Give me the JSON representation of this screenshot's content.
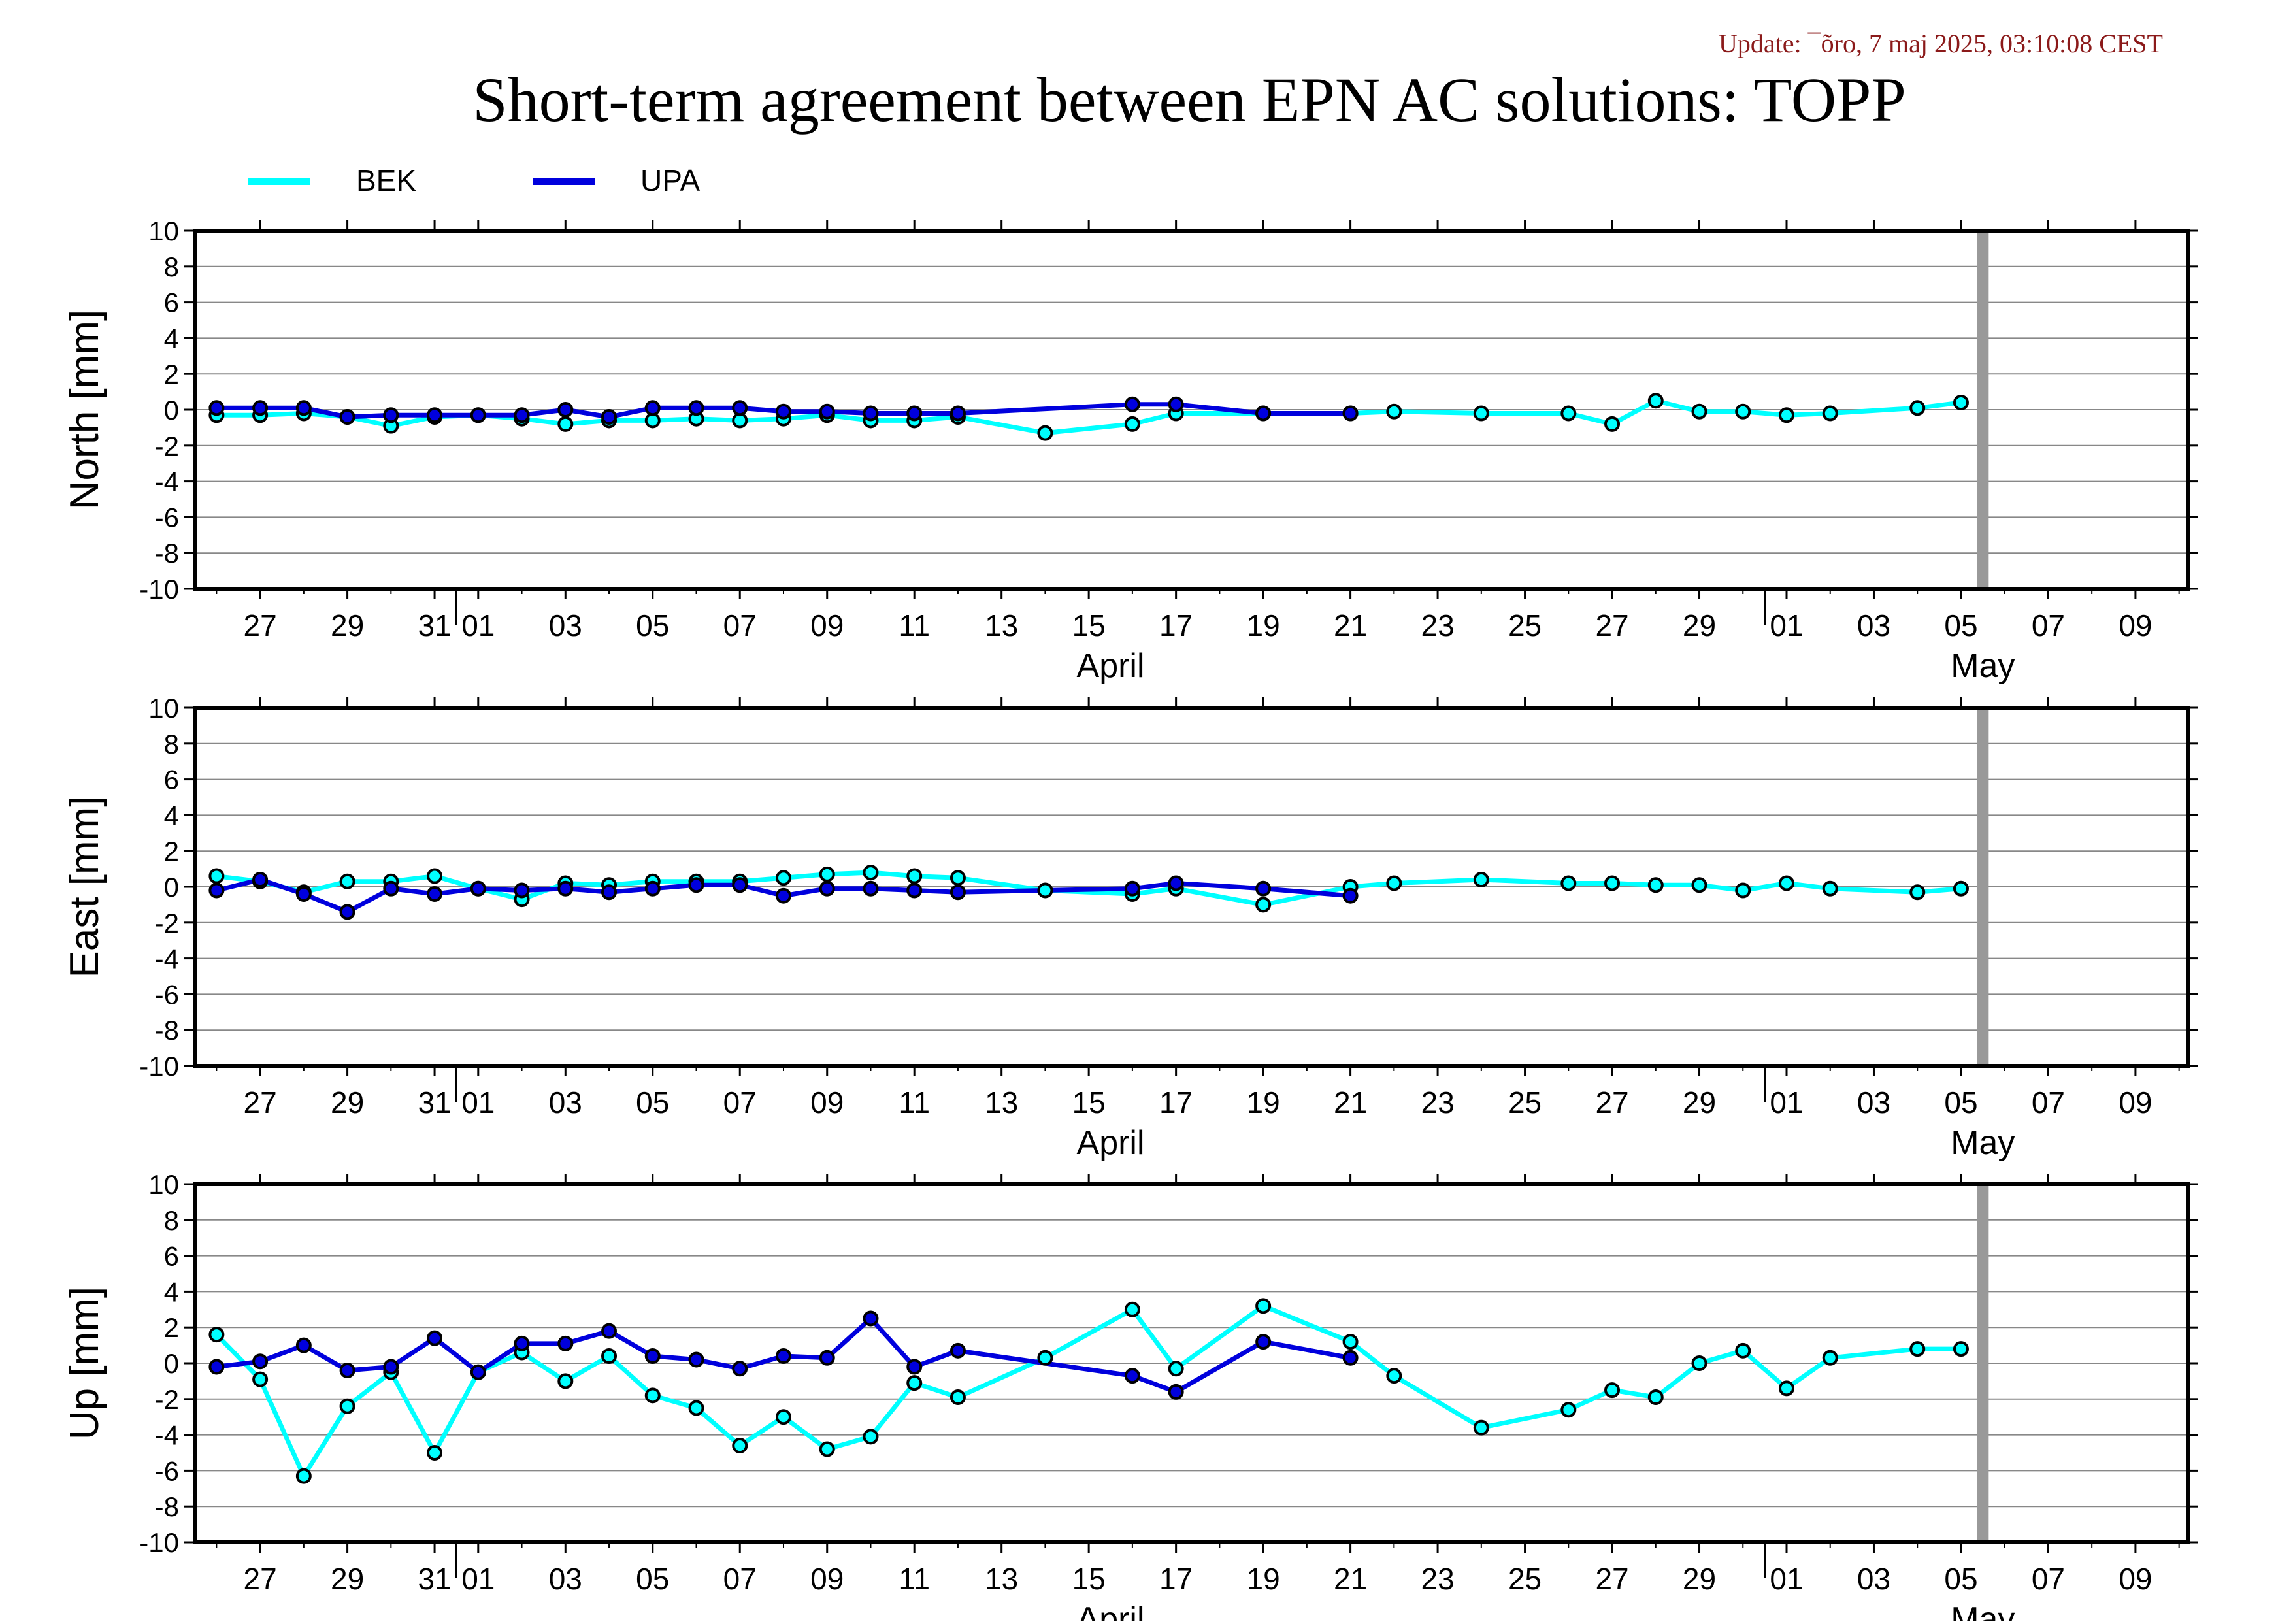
{
  "header": {
    "update_text": "Update: ¯õro, 7 maj 2025, 03:10:08 CEST",
    "title": "Short-term agreement between EPN AC solutions: TOPP"
  },
  "colors": {
    "bek": "#00ffff",
    "upa": "#0000dd",
    "update_text": "#8b1a1a",
    "marker_edge": "#000000",
    "grid": "#888888",
    "now_line": "#999999"
  },
  "legend": [
    {
      "name": "BEK",
      "color": "#00ffff"
    },
    {
      "name": "UPA",
      "color": "#0000dd"
    }
  ],
  "x_axis": {
    "range_days": [
      -5.5,
      40.2
    ],
    "ticks": [
      {
        "day": -4,
        "label": "27"
      },
      {
        "day": -2,
        "label": "29"
      },
      {
        "day": 0,
        "label": "31"
      },
      {
        "day": 1,
        "label": "01"
      },
      {
        "day": 3,
        "label": "03"
      },
      {
        "day": 5,
        "label": "05"
      },
      {
        "day": 7,
        "label": "07"
      },
      {
        "day": 9,
        "label": "09"
      },
      {
        "day": 11,
        "label": "11"
      },
      {
        "day": 13,
        "label": "13"
      },
      {
        "day": 15,
        "label": "15"
      },
      {
        "day": 17,
        "label": "17"
      },
      {
        "day": 19,
        "label": "19"
      },
      {
        "day": 21,
        "label": "21"
      },
      {
        "day": 23,
        "label": "23"
      },
      {
        "day": 25,
        "label": "25"
      },
      {
        "day": 27,
        "label": "27"
      },
      {
        "day": 29,
        "label": "29"
      },
      {
        "day": 31,
        "label": "01"
      },
      {
        "day": 33,
        "label": "03"
      },
      {
        "day": 35,
        "label": "05"
      },
      {
        "day": 37,
        "label": "07"
      },
      {
        "day": 39,
        "label": "09"
      }
    ],
    "month_labels": [
      {
        "day": 15.5,
        "label": "April"
      },
      {
        "day": 35.5,
        "label": "May"
      }
    ],
    "month_boundaries": [
      0.5,
      30.5
    ],
    "now_line_day": 35.5
  },
  "chart_data": [
    {
      "type": "line",
      "ylabel": "North [mm]",
      "ylim": [
        -10,
        10
      ],
      "yticks": [
        10,
        8,
        6,
        4,
        2,
        0,
        -2,
        -4,
        -6,
        -8,
        -10
      ],
      "grid": true,
      "series": [
        {
          "name": "BEK",
          "x": [
            -5,
            -4,
            -3,
            -2,
            -1,
            0,
            1,
            2,
            3,
            4,
            5,
            6,
            7,
            8,
            9,
            10,
            11,
            12,
            14,
            16,
            17,
            19,
            21,
            22,
            24,
            26,
            27,
            28,
            29,
            30,
            31,
            32,
            34,
            35
          ],
          "y": [
            -0.3,
            -0.3,
            -0.2,
            -0.4,
            -0.9,
            -0.4,
            -0.3,
            -0.5,
            -0.8,
            -0.6,
            -0.6,
            -0.5,
            -0.6,
            -0.5,
            -0.3,
            -0.6,
            -0.6,
            -0.4,
            -1.3,
            -0.8,
            -0.2,
            -0.2,
            -0.2,
            -0.1,
            -0.2,
            -0.2,
            -0.8,
            0.5,
            -0.1,
            -0.1,
            -0.3,
            -0.2,
            0.1,
            0.4
          ]
        },
        {
          "name": "UPA",
          "x": [
            -5,
            -4,
            -3,
            -2,
            -1,
            0,
            1,
            2,
            3,
            4,
            5,
            6,
            7,
            8,
            9,
            10,
            11,
            12,
            16,
            17,
            19,
            21
          ],
          "y": [
            0.1,
            0.1,
            0.1,
            -0.4,
            -0.3,
            -0.3,
            -0.3,
            -0.3,
            0.0,
            -0.4,
            0.1,
            0.1,
            0.1,
            -0.1,
            -0.1,
            -0.2,
            -0.2,
            -0.2,
            0.3,
            0.3,
            -0.2,
            -0.2
          ]
        }
      ]
    },
    {
      "type": "line",
      "ylabel": "East [mm]",
      "ylim": [
        -10,
        10
      ],
      "yticks": [
        10,
        8,
        6,
        4,
        2,
        0,
        -2,
        -4,
        -6,
        -8,
        -10
      ],
      "grid": true,
      "series": [
        {
          "name": "BEK",
          "x": [
            -5,
            -4,
            -3,
            -2,
            -1,
            0,
            1,
            2,
            3,
            4,
            5,
            6,
            7,
            8,
            9,
            10,
            11,
            12,
            14,
            16,
            17,
            19,
            21,
            22,
            24,
            26,
            27,
            28,
            29,
            30,
            31,
            32,
            34,
            35
          ],
          "y": [
            0.6,
            0.3,
            -0.3,
            0.3,
            0.3,
            0.6,
            -0.1,
            -0.7,
            0.2,
            0.1,
            0.3,
            0.3,
            0.3,
            0.5,
            0.7,
            0.8,
            0.6,
            0.5,
            -0.2,
            -0.4,
            -0.1,
            -1.0,
            0.0,
            0.2,
            0.4,
            0.2,
            0.2,
            0.1,
            0.1,
            -0.2,
            0.2,
            -0.1,
            -0.3,
            -0.1
          ]
        },
        {
          "name": "UPA",
          "x": [
            -5,
            -4,
            -3,
            -2,
            -1,
            0,
            1,
            2,
            3,
            4,
            5,
            6,
            7,
            8,
            9,
            10,
            11,
            12,
            16,
            17,
            19,
            21
          ],
          "y": [
            -0.2,
            0.4,
            -0.4,
            -1.4,
            -0.1,
            -0.4,
            -0.1,
            -0.2,
            -0.1,
            -0.3,
            -0.1,
            0.1,
            0.1,
            -0.5,
            -0.1,
            -0.1,
            -0.2,
            -0.3,
            -0.1,
            0.2,
            -0.1,
            -0.5
          ]
        }
      ]
    },
    {
      "type": "line",
      "ylabel": "Up [mm]",
      "ylim": [
        -10,
        10
      ],
      "yticks": [
        10,
        8,
        6,
        4,
        2,
        0,
        -2,
        -4,
        -6,
        -8,
        -10
      ],
      "grid": true,
      "series": [
        {
          "name": "BEK",
          "x": [
            -5,
            -4,
            -3,
            -2,
            -1,
            0,
            1,
            2,
            3,
            4,
            5,
            6,
            7,
            8,
            9,
            10,
            11,
            12,
            14,
            16,
            17,
            19,
            21,
            22,
            24,
            26,
            27,
            28,
            29,
            30,
            31,
            32,
            34,
            35
          ],
          "y": [
            1.6,
            -0.9,
            -6.3,
            -2.4,
            -0.5,
            -5.0,
            -0.5,
            0.6,
            -1.0,
            0.4,
            -1.8,
            -2.5,
            -4.6,
            -3.0,
            -4.8,
            -4.1,
            -1.1,
            -1.9,
            0.3,
            3.0,
            -0.3,
            3.2,
            1.2,
            -0.7,
            -3.6,
            -2.6,
            -1.5,
            -1.9,
            0.0,
            0.7,
            -1.4,
            0.3,
            0.8,
            0.8
          ]
        },
        {
          "name": "UPA",
          "x": [
            -5,
            -4,
            -3,
            -2,
            -1,
            0,
            1,
            2,
            3,
            4,
            5,
            6,
            7,
            8,
            9,
            10,
            11,
            12,
            16,
            17,
            19,
            21
          ],
          "y": [
            -0.2,
            0.1,
            1.0,
            -0.4,
            -0.2,
            1.4,
            -0.5,
            1.1,
            1.1,
            1.8,
            0.4,
            0.2,
            -0.3,
            0.4,
            0.3,
            2.5,
            -0.2,
            0.7,
            -0.7,
            -1.6,
            1.2,
            0.3
          ]
        }
      ]
    }
  ]
}
